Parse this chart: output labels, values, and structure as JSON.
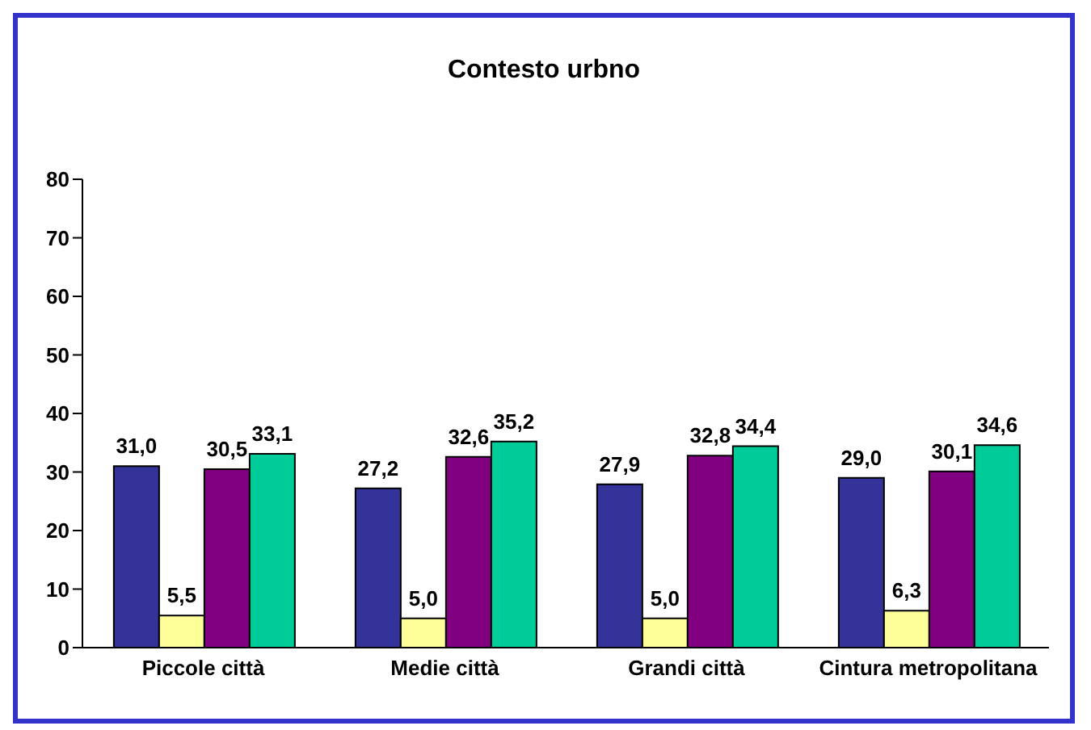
{
  "chart_data": {
    "type": "bar",
    "title": "Contesto urbno",
    "categories": [
      "Piccole città",
      "Medie città",
      "Grandi città",
      "Cintura metropolitana"
    ],
    "series": [
      {
        "color": "#333399",
        "values": [
          31.0,
          27.2,
          27.9,
          29.0
        ],
        "value_labels": [
          "31,0",
          "27,2",
          "27,9",
          "29,0"
        ]
      },
      {
        "color": "#ffff99",
        "values": [
          5.5,
          5.0,
          5.0,
          6.3
        ],
        "value_labels": [
          "5,5",
          "5,0",
          "5,0",
          "6,3"
        ]
      },
      {
        "color": "#800080",
        "values": [
          30.5,
          32.6,
          32.8,
          30.1
        ],
        "value_labels": [
          "30,5",
          "32,6",
          "32,8",
          "30,1"
        ]
      },
      {
        "color": "#00cc99",
        "values": [
          33.1,
          35.2,
          34.4,
          34.6
        ],
        "value_labels": [
          "33,1",
          "35,2",
          "34,4",
          "34,6"
        ]
      }
    ],
    "ylim": [
      0,
      80
    ],
    "yticks": [
      0,
      10,
      20,
      30,
      40,
      50,
      60,
      70,
      80
    ],
    "grid": false,
    "legend": false
  }
}
